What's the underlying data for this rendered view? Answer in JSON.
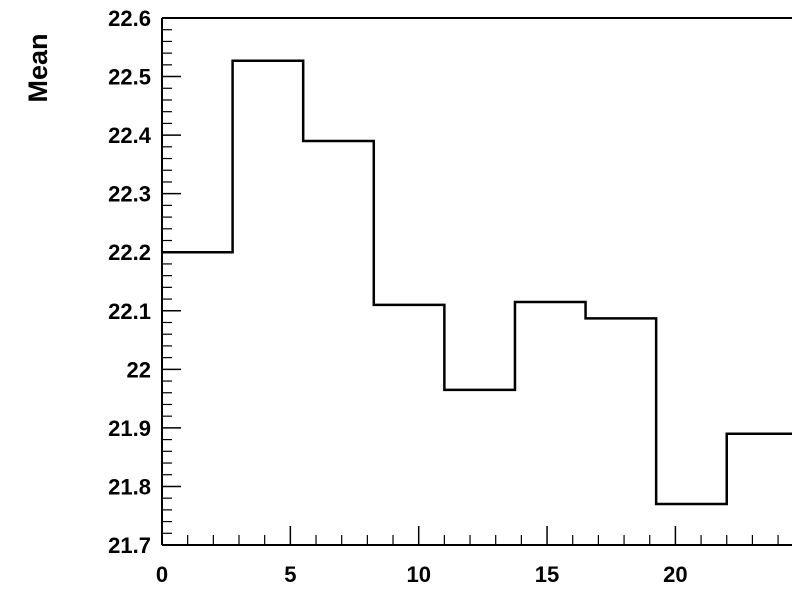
{
  "chart_data": {
    "type": "line",
    "style": "step-histogram",
    "title": "",
    "xlabel": "",
    "ylabel": "Mean",
    "xlim": [
      0,
      24.5
    ],
    "ylim": [
      21.7,
      22.6
    ],
    "grid": false,
    "x_ticks": [
      "0",
      "5",
      "10",
      "15",
      "20"
    ],
    "y_ticks": [
      "21.7",
      "21.8",
      "21.9",
      "22",
      "22.1",
      "22.2",
      "22.3",
      "22.4",
      "22.5",
      "22.6"
    ],
    "bin_edges": [
      0,
      2.75,
      5.5,
      8.25,
      11,
      13.75,
      16.5,
      19.25,
      22,
      24.75
    ],
    "values": [
      22.2,
      22.527,
      22.39,
      22.11,
      21.965,
      22.115,
      22.087,
      21.77,
      21.89
    ]
  }
}
